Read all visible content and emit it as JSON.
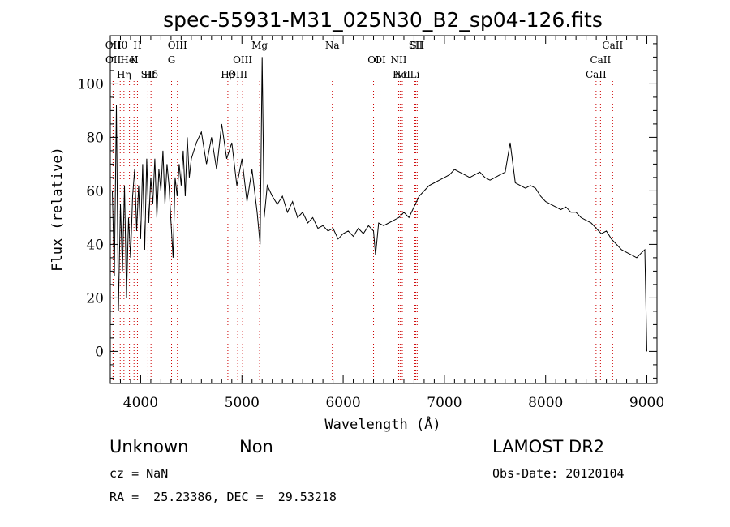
{
  "chart_data": {
    "type": "line",
    "title": "spec-55931-M31_025N30_B2_sp04-126.fits",
    "xlabel": "Wavelength (Å)",
    "ylabel": "Flux (relative)",
    "xlim": [
      3700,
      9100
    ],
    "ylim": [
      -12,
      118
    ],
    "x_ticks": [
      4000,
      5000,
      6000,
      7000,
      8000,
      9000
    ],
    "y_ticks": [
      0,
      20,
      40,
      60,
      80,
      100
    ],
    "grid": false,
    "line_color": "#000000",
    "marker_color": "#cc0000",
    "spectrum": {
      "x": [
        3720,
        3740,
        3760,
        3780,
        3800,
        3820,
        3840,
        3860,
        3880,
        3900,
        3920,
        3940,
        3960,
        3980,
        4000,
        4020,
        4040,
        4060,
        4080,
        4100,
        4120,
        4140,
        4160,
        4180,
        4200,
        4220,
        4240,
        4260,
        4280,
        4300,
        4320,
        4340,
        4360,
        4380,
        4400,
        4420,
        4440,
        4460,
        4480,
        4500,
        4550,
        4600,
        4650,
        4700,
        4750,
        4800,
        4850,
        4900,
        4950,
        5000,
        5050,
        5100,
        5150,
        5180,
        5200,
        5220,
        5250,
        5300,
        5350,
        5400,
        5450,
        5500,
        5550,
        5600,
        5650,
        5700,
        5750,
        5800,
        5850,
        5900,
        5950,
        6000,
        6050,
        6100,
        6150,
        6200,
        6250,
        6300,
        6320,
        6350,
        6400,
        6450,
        6500,
        6550,
        6600,
        6650,
        6700,
        6750,
        6800,
        6850,
        6900,
        6950,
        7000,
        7050,
        7100,
        7150,
        7200,
        7250,
        7300,
        7350,
        7400,
        7450,
        7500,
        7550,
        7600,
        7650,
        7700,
        7750,
        7800,
        7850,
        7900,
        7950,
        8000,
        8050,
        8100,
        8150,
        8200,
        8250,
        8300,
        8350,
        8400,
        8450,
        8500,
        8550,
        8600,
        8650,
        8700,
        8750,
        8800,
        8850,
        8900,
        8950,
        8980,
        9000
      ],
      "y": [
        60,
        28,
        92,
        15,
        55,
        30,
        62,
        20,
        50,
        35,
        58,
        68,
        45,
        62,
        42,
        70,
        38,
        72,
        48,
        65,
        55,
        72,
        50,
        68,
        60,
        75,
        55,
        70,
        62,
        48,
        35,
        65,
        58,
        70,
        62,
        75,
        58,
        80,
        65,
        72,
        78,
        82,
        70,
        80,
        68,
        85,
        72,
        78,
        62,
        72,
        56,
        68,
        52,
        40,
        110,
        50,
        62,
        58,
        55,
        58,
        52,
        56,
        50,
        52,
        48,
        50,
        46,
        47,
        45,
        46,
        42,
        44,
        45,
        43,
        46,
        44,
        47,
        45,
        36,
        48,
        47,
        48,
        49,
        50,
        52,
        50,
        54,
        58,
        60,
        62,
        63,
        64,
        65,
        66,
        68,
        67,
        66,
        65,
        66,
        67,
        65,
        64,
        65,
        66,
        67,
        78,
        63,
        62,
        61,
        62,
        61,
        58,
        56,
        55,
        54,
        53,
        54,
        52,
        52,
        50,
        49,
        48,
        46,
        44,
        45,
        42,
        40,
        38,
        37,
        36,
        35,
        37,
        38,
        0
      ]
    },
    "lines": [
      {
        "label": "Hθ",
        "x": 3798
      },
      {
        "label": "K",
        "x": 3934
      },
      {
        "label": "Hδ",
        "x": 4102
      },
      {
        "label": "OII",
        "x": 3727
      },
      {
        "label": "HeI",
        "x": 3889
      },
      {
        "label": "SII",
        "x": 4072
      },
      {
        "label": "OIII",
        "x": 4363
      },
      {
        "label": "OII",
        "x": 3729
      },
      {
        "label": "Hη",
        "x": 3835
      },
      {
        "label": "H",
        "x": 3968
      },
      {
        "label": "G",
        "x": 4305
      },
      {
        "label": "Hβ",
        "x": 4861
      },
      {
        "label": "Mg",
        "x": 5175
      },
      {
        "label": "OIII",
        "x": 5007
      },
      {
        "label": "OIII",
        "x": 4959
      },
      {
        "label": "Na",
        "x": 5893
      },
      {
        "label": "OI",
        "x": 6364
      },
      {
        "label": "NII",
        "x": 6584
      },
      {
        "label": "SII",
        "x": 6731
      },
      {
        "label": "OI",
        "x": 6300
      },
      {
        "label": "Hα",
        "x": 6563
      },
      {
        "label": "SII",
        "x": 6717
      },
      {
        "label": "NII",
        "x": 6548
      },
      {
        "label": "Li",
        "x": 6708
      },
      {
        "label": "CaII",
        "x": 8662
      },
      {
        "label": "CaII",
        "x": 8542
      },
      {
        "label": "CaII",
        "x": 8498
      }
    ]
  },
  "info": {
    "classification": "Unknown",
    "subclass": "Non",
    "survey": "LAMOST DR2",
    "cz": "cz = NaN",
    "obs_date": "Obs-Date: 20120104",
    "coords": "RA =  25.23386, DEC =  29.53218"
  }
}
